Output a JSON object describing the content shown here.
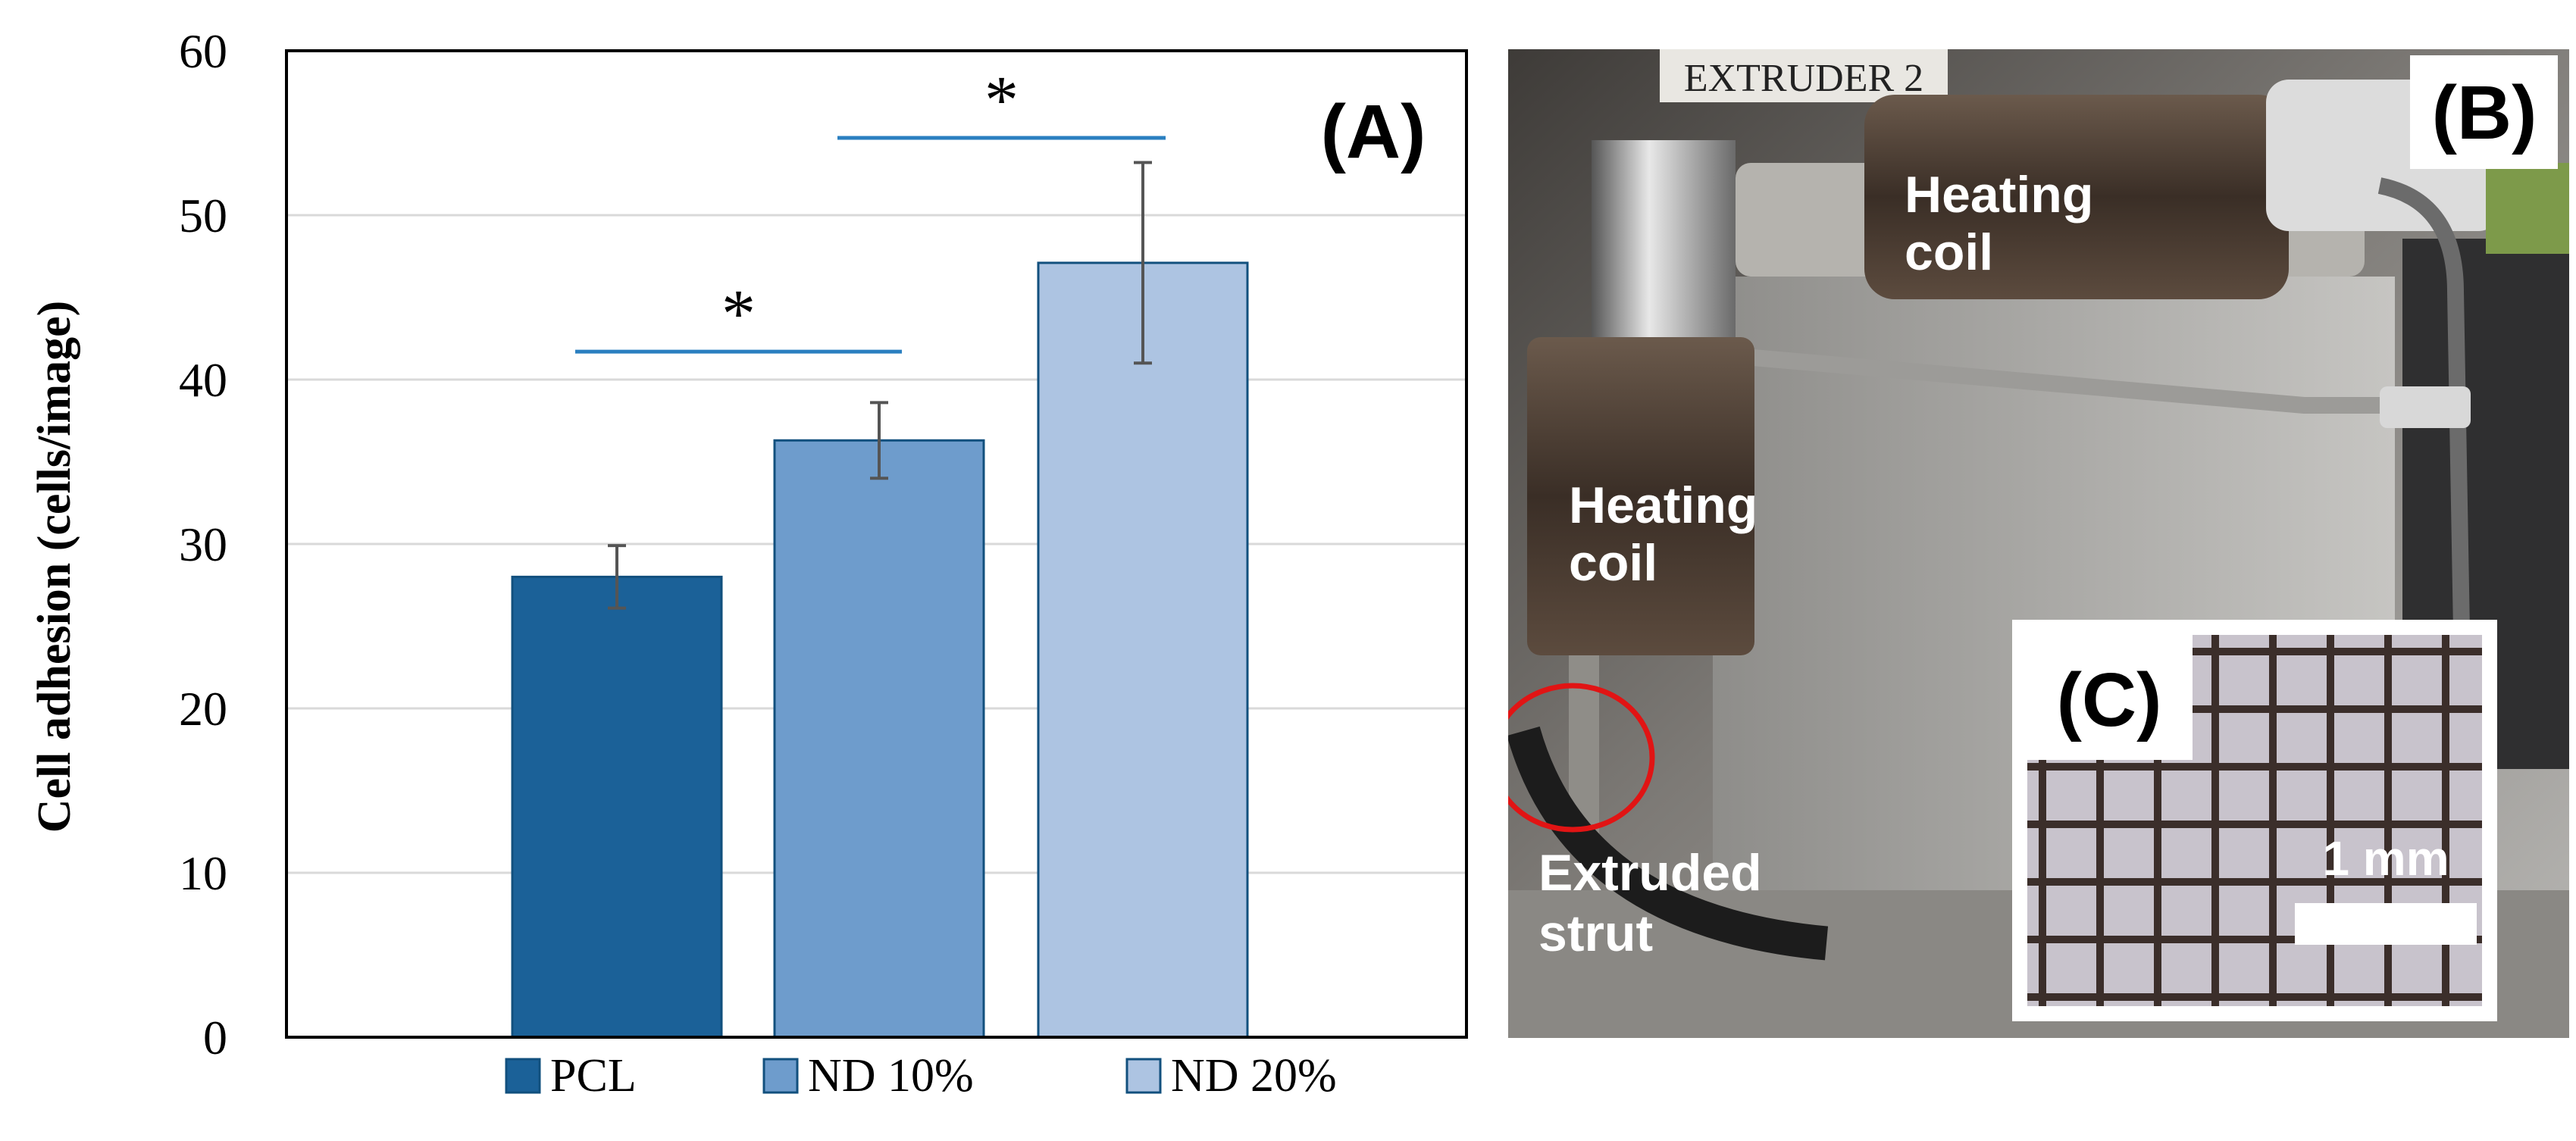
{
  "chart_data": {
    "type": "bar",
    "panel_label": "(A)",
    "title": "",
    "xlabel": "",
    "ylabel": "Cell adhesion (cells/image)",
    "ylim": [
      0,
      60
    ],
    "yticks": [
      0,
      10,
      20,
      30,
      40,
      50,
      60
    ],
    "grid": true,
    "categories": [
      "PCL",
      "ND 10%",
      "ND 20%"
    ],
    "values": [
      28,
      36.3,
      47.1
    ],
    "errors": [
      1.9,
      2.3,
      6.1
    ],
    "colors": [
      "#1b6198",
      "#6e9ccc",
      "#adc4e2"
    ],
    "edge_color": "#12507e",
    "legend": [
      "PCL",
      "ND 10%",
      "ND 20%"
    ],
    "legend_position": "bottom",
    "significance": [
      {
        "from": 0,
        "to": 1,
        "y": 41.7,
        "label": "*"
      },
      {
        "from": 1,
        "to": 2,
        "y": 54.7,
        "label": "*"
      }
    ],
    "significance_color": "#2a7fc0"
  },
  "photo": {
    "panel_label": "(B)",
    "inset_label": "(C)",
    "scale_bar": "1 mm",
    "heating_coil_top": [
      "Heating",
      "coil"
    ],
    "heating_coil_left": [
      "Heating",
      "coil"
    ],
    "extruded_strut": [
      "Extruded",
      "strut"
    ],
    "machine_label": "EXTRUDER 2"
  }
}
